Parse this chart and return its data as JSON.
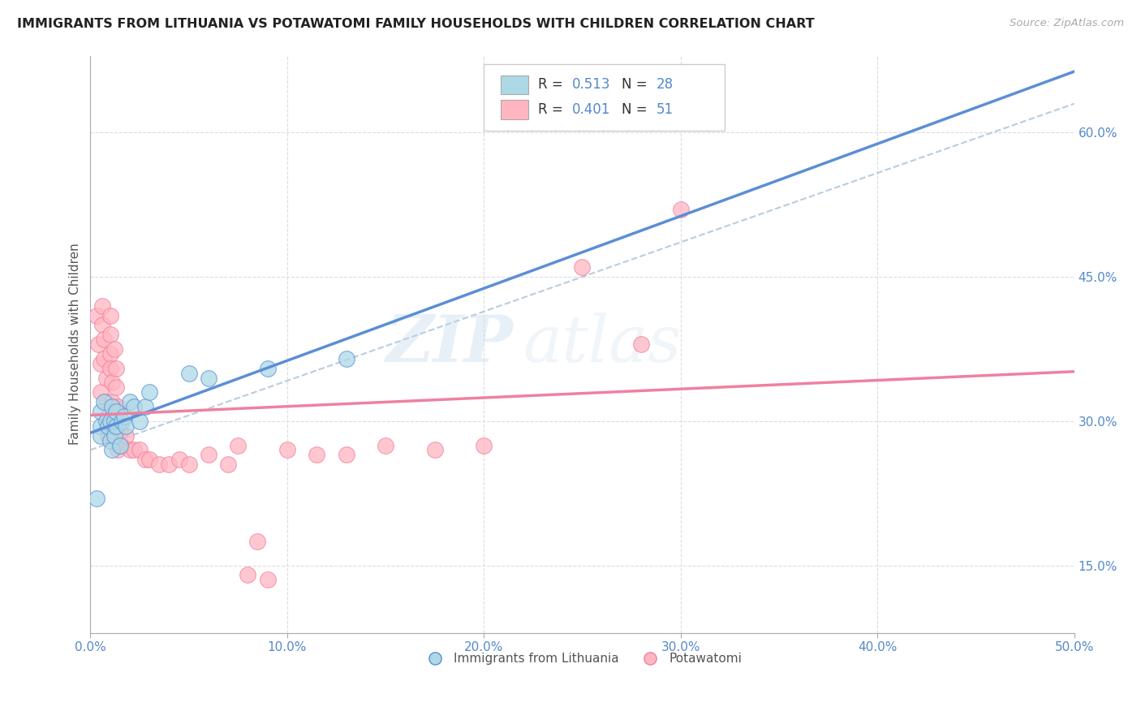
{
  "title": "IMMIGRANTS FROM LITHUANIA VS POTAWATOMI FAMILY HOUSEHOLDS WITH CHILDREN CORRELATION CHART",
  "source_text": "Source: ZipAtlas.com",
  "ylabel": "Family Households with Children",
  "legend_label_1": "Immigrants from Lithuania",
  "legend_label_2": "Potawatomi",
  "r1": 0.513,
  "n1": 28,
  "r2": 0.401,
  "n2": 51,
  "xlim": [
    0.0,
    0.5
  ],
  "ylim": [
    0.08,
    0.68
  ],
  "xticks": [
    0.0,
    0.1,
    0.2,
    0.3,
    0.4,
    0.5
  ],
  "xticklabels": [
    "0.0%",
    "10.0%",
    "20.0%",
    "30.0%",
    "40.0%",
    "50.0%"
  ],
  "yticks_right": [
    0.15,
    0.3,
    0.45,
    0.6
  ],
  "yticklabels_right": [
    "15.0%",
    "30.0%",
    "45.0%",
    "60.0%"
  ],
  "watermark_1": "ZIP",
  "watermark_2": "atlas",
  "color_blue": "#ADD8E6",
  "color_pink": "#FFB6C1",
  "line_blue": "#5B8FD4",
  "line_pink": "#F080A0",
  "line_dashed_color": "#B0C8DC",
  "scatter_blue": [
    [
      0.005,
      0.295
    ],
    [
      0.005,
      0.31
    ],
    [
      0.005,
      0.285
    ],
    [
      0.007,
      0.32
    ],
    [
      0.008,
      0.3
    ],
    [
      0.009,
      0.295
    ],
    [
      0.01,
      0.28
    ],
    [
      0.01,
      0.3
    ],
    [
      0.011,
      0.315
    ],
    [
      0.011,
      0.27
    ],
    [
      0.012,
      0.3
    ],
    [
      0.012,
      0.285
    ],
    [
      0.013,
      0.295
    ],
    [
      0.013,
      0.31
    ],
    [
      0.015,
      0.275
    ],
    [
      0.016,
      0.3
    ],
    [
      0.017,
      0.305
    ],
    [
      0.018,
      0.295
    ],
    [
      0.02,
      0.32
    ],
    [
      0.022,
      0.315
    ],
    [
      0.025,
      0.3
    ],
    [
      0.028,
      0.315
    ],
    [
      0.03,
      0.33
    ],
    [
      0.05,
      0.35
    ],
    [
      0.06,
      0.345
    ],
    [
      0.09,
      0.355
    ],
    [
      0.13,
      0.365
    ],
    [
      0.003,
      0.22
    ]
  ],
  "scatter_pink": [
    [
      0.003,
      0.41
    ],
    [
      0.004,
      0.38
    ],
    [
      0.005,
      0.36
    ],
    [
      0.005,
      0.33
    ],
    [
      0.006,
      0.42
    ],
    [
      0.006,
      0.4
    ],
    [
      0.007,
      0.385
    ],
    [
      0.007,
      0.365
    ],
    [
      0.008,
      0.345
    ],
    [
      0.008,
      0.32
    ],
    [
      0.009,
      0.305
    ],
    [
      0.009,
      0.285
    ],
    [
      0.01,
      0.41
    ],
    [
      0.01,
      0.39
    ],
    [
      0.01,
      0.37
    ],
    [
      0.01,
      0.355
    ],
    [
      0.011,
      0.34
    ],
    [
      0.011,
      0.32
    ],
    [
      0.012,
      0.295
    ],
    [
      0.012,
      0.375
    ],
    [
      0.013,
      0.355
    ],
    [
      0.013,
      0.335
    ],
    [
      0.014,
      0.315
    ],
    [
      0.014,
      0.27
    ],
    [
      0.015,
      0.29
    ],
    [
      0.016,
      0.275
    ],
    [
      0.018,
      0.285
    ],
    [
      0.02,
      0.27
    ],
    [
      0.022,
      0.27
    ],
    [
      0.025,
      0.27
    ],
    [
      0.028,
      0.26
    ],
    [
      0.03,
      0.26
    ],
    [
      0.035,
      0.255
    ],
    [
      0.04,
      0.255
    ],
    [
      0.045,
      0.26
    ],
    [
      0.05,
      0.255
    ],
    [
      0.06,
      0.265
    ],
    [
      0.07,
      0.255
    ],
    [
      0.075,
      0.275
    ],
    [
      0.08,
      0.14
    ],
    [
      0.085,
      0.175
    ],
    [
      0.09,
      0.135
    ],
    [
      0.1,
      0.27
    ],
    [
      0.115,
      0.265
    ],
    [
      0.13,
      0.265
    ],
    [
      0.15,
      0.275
    ],
    [
      0.175,
      0.27
    ],
    [
      0.2,
      0.275
    ],
    [
      0.25,
      0.46
    ],
    [
      0.28,
      0.38
    ],
    [
      0.3,
      0.52
    ]
  ],
  "trendline_blue": [
    0.0,
    0.13,
    0.27,
    0.4
  ],
  "trendline_pink_start_y": 0.27,
  "trendline_pink_end_y": 0.4,
  "bg_color": "#FFFFFF",
  "plot_bg_color": "#FFFFFF",
  "grid_color": "#DCDCDC",
  "title_color": "#222222",
  "axis_label_color": "#555555",
  "tick_color": "#5588CC"
}
